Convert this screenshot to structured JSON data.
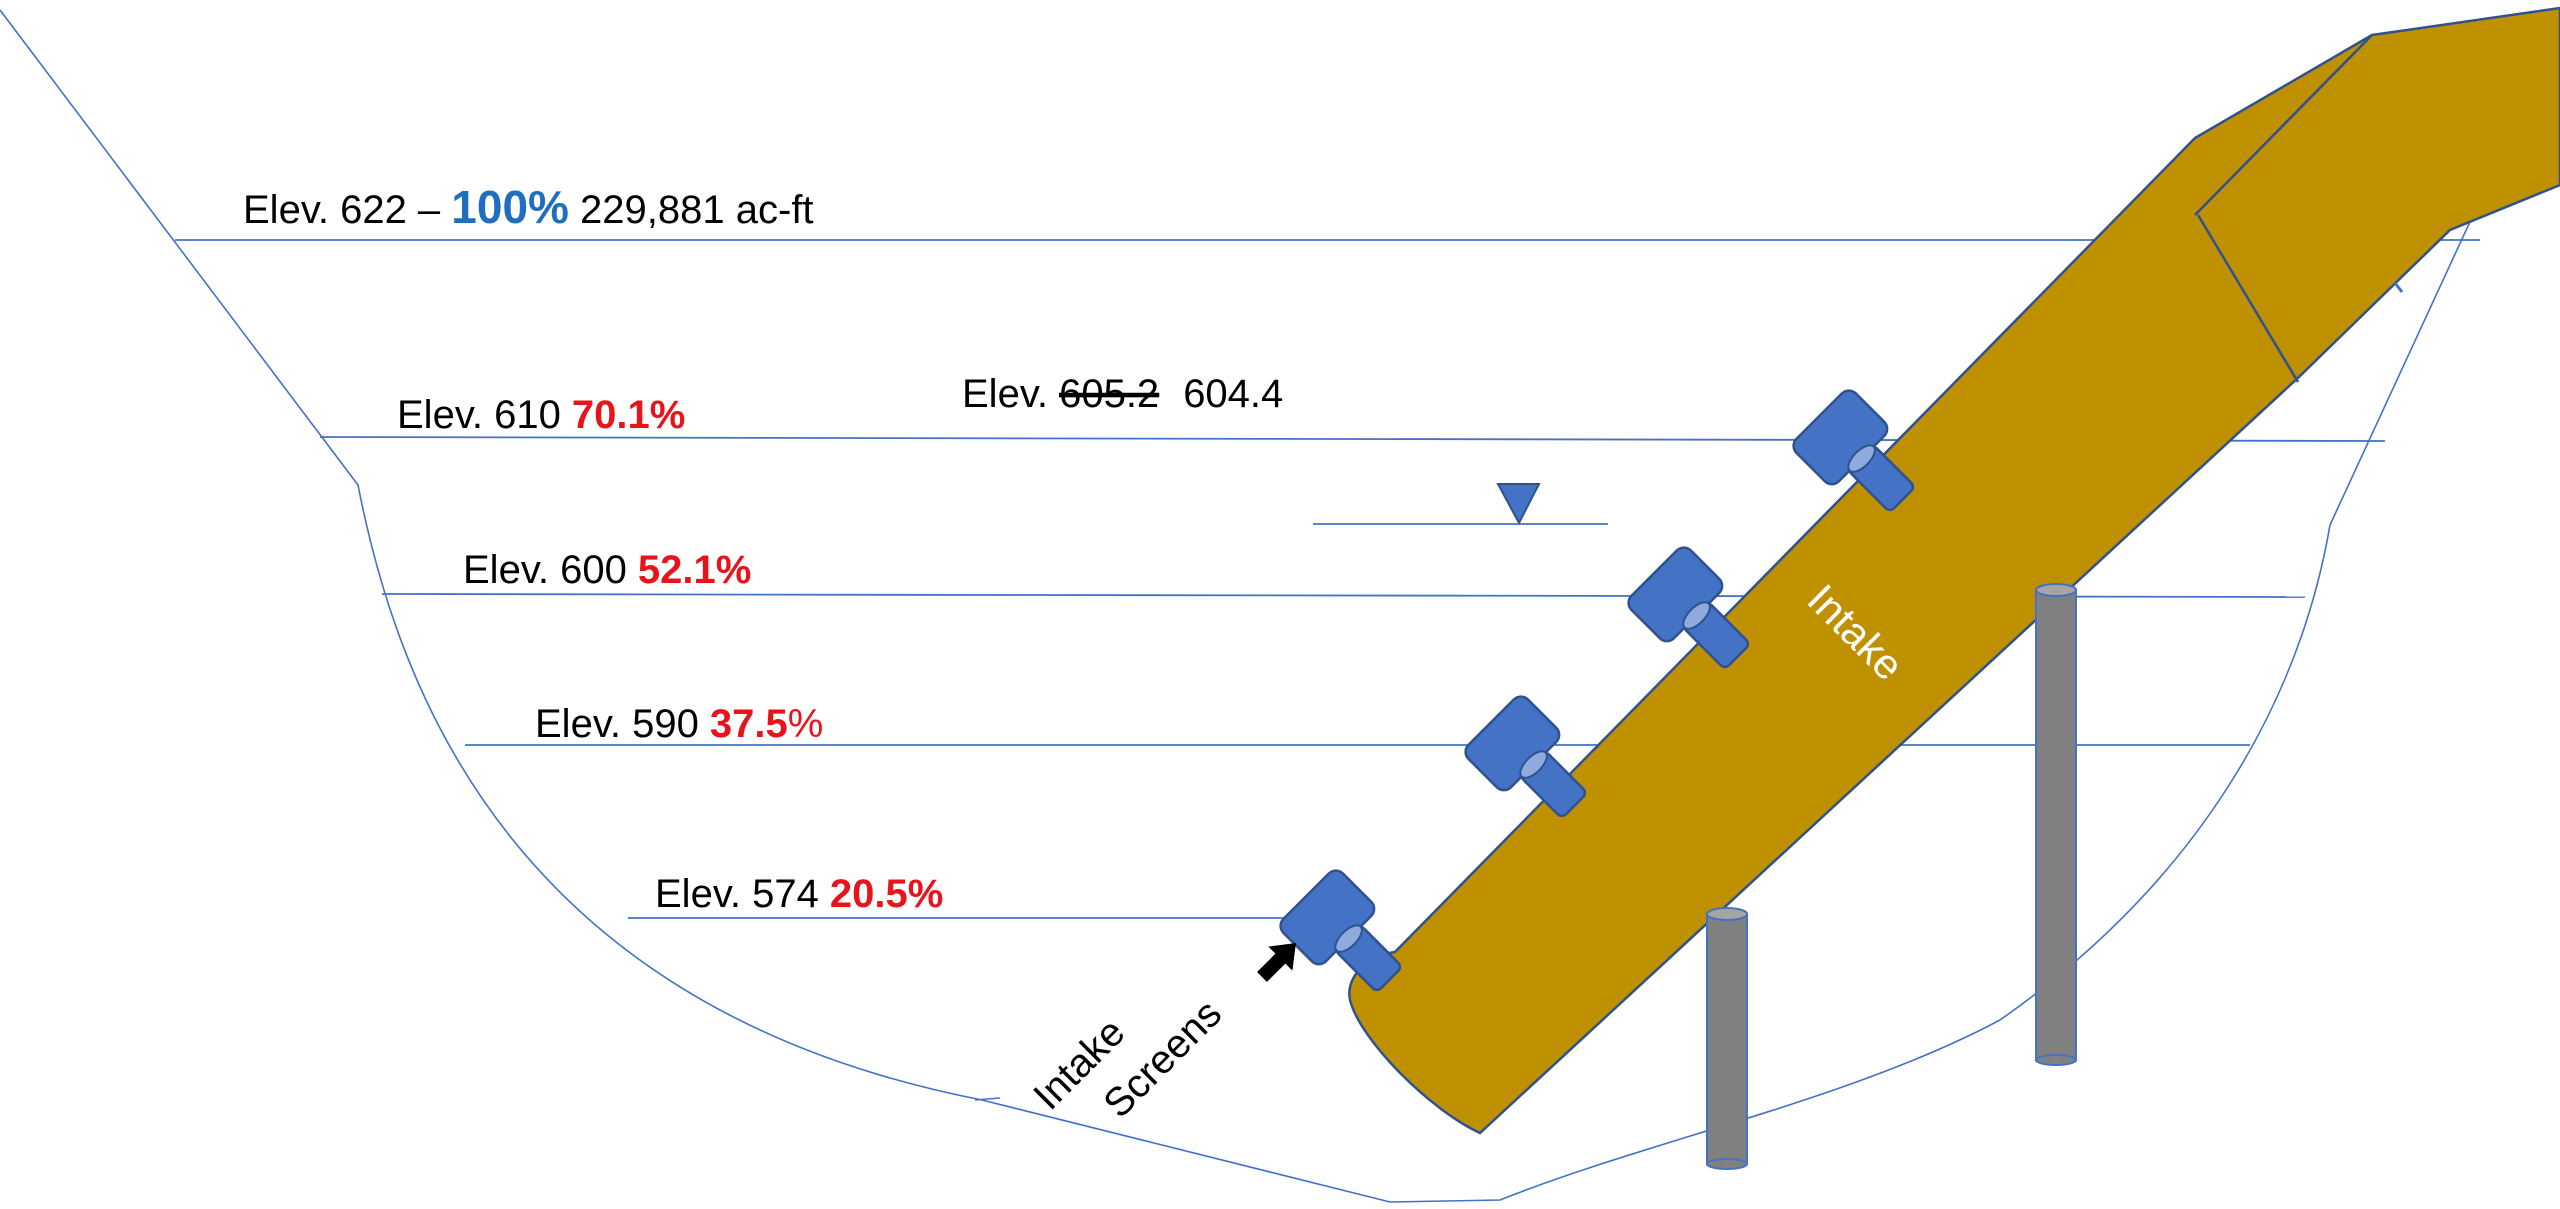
{
  "levels": {
    "full": {
      "prefix": "Elev. 622 – ",
      "percent": "100%",
      "volume": " 229,881 ac-ft",
      "percent_color": "#1F6FC0"
    },
    "l610": {
      "prefix": "Elev. 610 ",
      "percent": "70.1%"
    },
    "l600": {
      "prefix": "Elev. 600 ",
      "percent": "52.1%"
    },
    "l590": {
      "prefix": "Elev. 590 ",
      "percent_bold": "37.5",
      "percent_sign": "%"
    },
    "l574": {
      "prefix": "Elev. 574 ",
      "percent": "20.5%"
    }
  },
  "current_elevation": {
    "prefix": "Elev. ",
    "old_value": "605.2",
    "new_value": "604.4"
  },
  "intake_label": "Intake",
  "intake_screens_label": {
    "line1": "Intake",
    "line2": "Screens"
  },
  "colors": {
    "water_line": "#4472C4",
    "intake": "#BF9000",
    "screen": "#4472C4",
    "pile": "#808080",
    "percent_red": "#E8141B",
    "percent_blue": "#1F6FC0"
  },
  "icons": {
    "water_surface_marker": "down-triangle-icon",
    "screens_pointer": "arrow-icon"
  }
}
